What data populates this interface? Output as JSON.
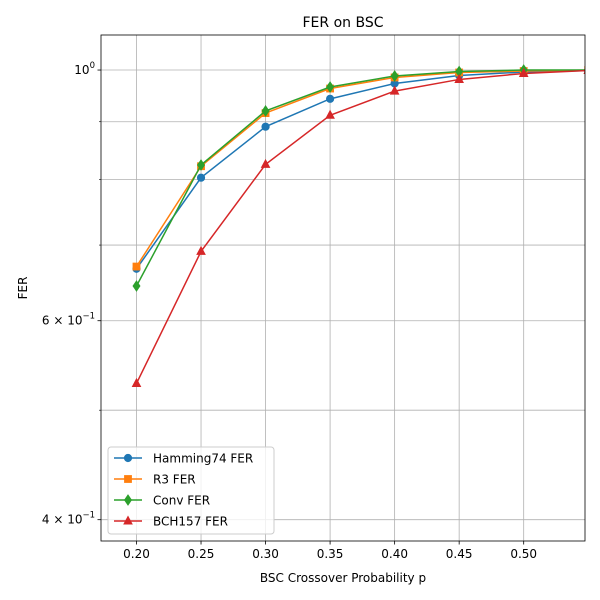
{
  "chart_data": {
    "type": "line",
    "title": "FER on BSC",
    "xlabel": "BSC Crossover Probability p",
    "ylabel": "FER",
    "x": [
      0.2,
      0.25,
      0.3,
      0.35,
      0.4,
      0.45,
      0.5,
      0.55
    ],
    "xlim": [
      0.1725,
      0.5475
    ],
    "ylim": [
      0.383,
      1.074
    ],
    "yscale": "log",
    "grid": true,
    "legend_position": "lower left",
    "x_ticks": [
      "0.20",
      "0.25",
      "0.30",
      "0.35",
      "0.40",
      "0.45",
      "0.50"
    ],
    "x_tick_values": [
      0.2,
      0.25,
      0.3,
      0.35,
      0.4,
      0.45,
      0.5
    ],
    "y_major_ticks": [
      {
        "value": 1.0,
        "base": "10",
        "exp": "0",
        "coef": ""
      },
      {
        "value": 0.6,
        "base": "10",
        "exp": "−1",
        "coef": "6 × "
      },
      {
        "value": 0.4,
        "base": "10",
        "exp": "−1",
        "coef": "4 × "
      }
    ],
    "y_minor_ticks": [
      0.5,
      0.7,
      0.8,
      0.9
    ],
    "series": [
      {
        "name": "Hamming74 FER",
        "color": "#1f77b4",
        "marker": "circle",
        "values": [
          0.667,
          0.803,
          0.891,
          0.943,
          0.973,
          0.989,
          0.996,
          0.999
        ]
      },
      {
        "name": "R3 FER",
        "color": "#ff7f0e",
        "marker": "square",
        "values": [
          0.67,
          0.822,
          0.916,
          0.963,
          0.985,
          0.995,
          0.998,
          1.0
        ]
      },
      {
        "name": "Conv FER",
        "color": "#2ca02c",
        "marker": "diamond",
        "values": [
          0.644,
          0.824,
          0.92,
          0.966,
          0.988,
          0.997,
          1.0,
          1.0
        ]
      },
      {
        "name": "BCH157 FER",
        "color": "#d62728",
        "marker": "triangle",
        "values": [
          0.528,
          0.691,
          0.825,
          0.912,
          0.958,
          0.981,
          0.993,
          0.999
        ]
      }
    ]
  }
}
